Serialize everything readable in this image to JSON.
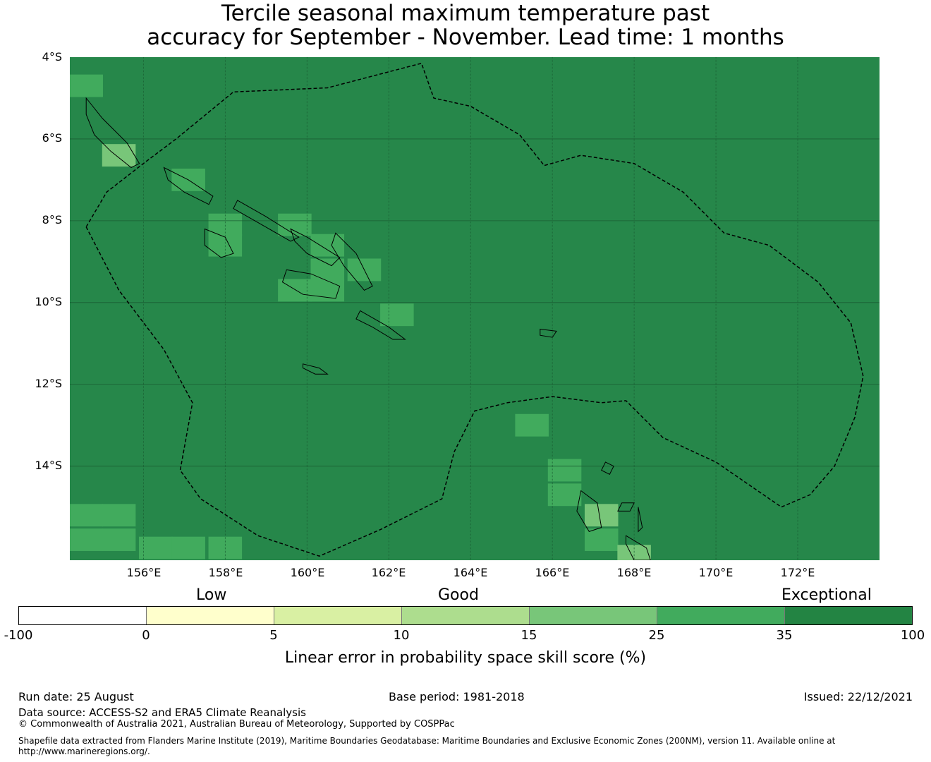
{
  "title": {
    "line1": "Tercile seasonal maximum temperature past",
    "line2": "accuracy for September - November. Lead time: 1 months"
  },
  "map": {
    "background_color": "#26874A",
    "lat_labels": [
      "4°S",
      "6°S",
      "8°S",
      "10°S",
      "12°S",
      "14°S"
    ],
    "lon_labels": [
      "156°E",
      "158°E",
      "160°E",
      "162°E",
      "164°E",
      "166°E",
      "168°E",
      "170°E",
      "172°E"
    ],
    "extent": {
      "lon_min": 154.2,
      "lon_max": 174.0,
      "lat_min": -16.3,
      "lat_max": -4.0
    },
    "cells": [
      {
        "lon": 154.6,
        "lat": -4.7,
        "level": 5
      },
      {
        "lon": 155.4,
        "lat": -6.4,
        "level": 4
      },
      {
        "lon": 157.1,
        "lat": -7.0,
        "level": 5
      },
      {
        "lon": 158.0,
        "lat": -8.1,
        "level": 5
      },
      {
        "lon": 158.0,
        "lat": -8.6,
        "level": 5
      },
      {
        "lon": 159.7,
        "lat": -8.1,
        "level": 5
      },
      {
        "lon": 160.5,
        "lat": -8.6,
        "level": 5
      },
      {
        "lon": 160.5,
        "lat": -9.2,
        "level": 5
      },
      {
        "lon": 161.4,
        "lat": -9.2,
        "level": 5
      },
      {
        "lon": 159.7,
        "lat": -9.7,
        "level": 5
      },
      {
        "lon": 160.5,
        "lat": -9.7,
        "level": 5
      },
      {
        "lon": 162.2,
        "lat": -10.3,
        "level": 5
      },
      {
        "lon": 165.5,
        "lat": -13.0,
        "level": 5
      },
      {
        "lon": 166.3,
        "lat": -14.1,
        "level": 5
      },
      {
        "lon": 166.3,
        "lat": -14.7,
        "level": 5
      },
      {
        "lon": 167.2,
        "lat": -15.2,
        "level": 4
      },
      {
        "lon": 167.2,
        "lat": -15.8,
        "level": 5
      },
      {
        "lon": 168.0,
        "lat": -16.2,
        "level": 4
      },
      {
        "lon": 154.6,
        "lat": -15.2,
        "level": 5
      },
      {
        "lon": 155.4,
        "lat": -15.2,
        "level": 5
      },
      {
        "lon": 154.6,
        "lat": -15.8,
        "level": 5
      },
      {
        "lon": 155.4,
        "lat": -15.8,
        "level": 5
      },
      {
        "lon": 156.3,
        "lat": -16.0,
        "level": 5
      },
      {
        "lon": 157.1,
        "lat": -16.0,
        "level": 5
      },
      {
        "lon": 158.0,
        "lat": -16.0,
        "level": 5
      }
    ],
    "eez_boundary": [
      [
        154.6,
        -8.15
      ],
      [
        155.1,
        -7.3
      ],
      [
        156.0,
        -6.6
      ],
      [
        156.8,
        -6.0
      ],
      [
        158.2,
        -4.85
      ],
      [
        160.5,
        -4.75
      ],
      [
        162.8,
        -4.15
      ],
      [
        163.1,
        -5.0
      ],
      [
        164.0,
        -5.2
      ],
      [
        165.2,
        -5.9
      ],
      [
        165.8,
        -6.65
      ],
      [
        166.7,
        -6.4
      ],
      [
        168.0,
        -6.6
      ],
      [
        169.2,
        -7.3
      ],
      [
        170.2,
        -8.3
      ],
      [
        171.3,
        -8.6
      ],
      [
        172.5,
        -9.5
      ],
      [
        173.3,
        -10.5
      ],
      [
        173.6,
        -11.8
      ],
      [
        173.4,
        -12.8
      ],
      [
        172.9,
        -14.0
      ],
      [
        172.3,
        -14.7
      ],
      [
        171.6,
        -15.0
      ],
      [
        170.0,
        -13.9
      ],
      [
        168.7,
        -13.3
      ],
      [
        167.8,
        -12.4
      ],
      [
        167.2,
        -12.45
      ],
      [
        166.0,
        -12.3
      ],
      [
        164.9,
        -12.45
      ],
      [
        164.1,
        -12.65
      ],
      [
        163.6,
        -13.65
      ],
      [
        163.3,
        -14.8
      ],
      [
        161.8,
        -15.55
      ],
      [
        160.3,
        -16.2
      ],
      [
        158.8,
        -15.7
      ],
      [
        157.4,
        -14.8
      ],
      [
        156.9,
        -14.1
      ],
      [
        157.2,
        -12.45
      ],
      [
        156.5,
        -11.15
      ],
      [
        155.4,
        -9.7
      ],
      [
        154.6,
        -8.15
      ]
    ],
    "islands": [
      [
        [
          154.6,
          -5.0
        ],
        [
          155.0,
          -5.5
        ],
        [
          155.6,
          -6.1
        ],
        [
          155.9,
          -6.6
        ],
        [
          155.7,
          -6.7
        ],
        [
          155.2,
          -6.3
        ],
        [
          154.8,
          -5.9
        ],
        [
          154.6,
          -5.4
        ]
      ],
      [
        [
          156.5,
          -6.7
        ],
        [
          157.1,
          -7.0
        ],
        [
          157.7,
          -7.4
        ],
        [
          157.6,
          -7.6
        ],
        [
          157.0,
          -7.3
        ],
        [
          156.6,
          -7.0
        ]
      ],
      [
        [
          158.3,
          -7.5
        ],
        [
          159.0,
          -7.9
        ],
        [
          159.8,
          -8.4
        ],
        [
          159.6,
          -8.5
        ],
        [
          158.9,
          -8.1
        ],
        [
          158.2,
          -7.7
        ]
      ],
      [
        [
          159.6,
          -8.2
        ],
        [
          160.0,
          -8.4
        ],
        [
          160.8,
          -8.9
        ],
        [
          160.6,
          -9.1
        ],
        [
          160.0,
          -8.8
        ],
        [
          159.7,
          -8.5
        ]
      ],
      [
        [
          160.7,
          -8.3
        ],
        [
          161.2,
          -8.8
        ],
        [
          161.6,
          -9.6
        ],
        [
          161.4,
          -9.7
        ],
        [
          160.9,
          -9.1
        ],
        [
          160.6,
          -8.6
        ]
      ],
      [
        [
          159.5,
          -9.2
        ],
        [
          160.1,
          -9.3
        ],
        [
          160.8,
          -9.6
        ],
        [
          160.7,
          -9.9
        ],
        [
          159.9,
          -9.8
        ],
        [
          159.4,
          -9.5
        ]
      ],
      [
        [
          157.5,
          -8.2
        ],
        [
          158.0,
          -8.4
        ],
        [
          158.2,
          -8.8
        ],
        [
          157.9,
          -8.9
        ],
        [
          157.5,
          -8.6
        ]
      ],
      [
        [
          161.3,
          -10.2
        ],
        [
          162.0,
          -10.6
        ],
        [
          162.4,
          -10.9
        ],
        [
          162.1,
          -10.9
        ],
        [
          161.6,
          -10.6
        ],
        [
          161.2,
          -10.4
        ]
      ],
      [
        [
          159.9,
          -11.5
        ],
        [
          160.3,
          -11.6
        ],
        [
          160.5,
          -11.75
        ],
        [
          160.2,
          -11.75
        ],
        [
          159.9,
          -11.6
        ]
      ],
      [
        [
          165.7,
          -10.65
        ],
        [
          166.1,
          -10.7
        ],
        [
          166.0,
          -10.85
        ],
        [
          165.7,
          -10.8
        ]
      ],
      [
        [
          166.7,
          -14.6
        ],
        [
          167.1,
          -14.9
        ],
        [
          167.2,
          -15.5
        ],
        [
          166.9,
          -15.6
        ],
        [
          166.6,
          -15.1
        ]
      ],
      [
        [
          167.7,
          -14.9
        ],
        [
          168.0,
          -14.9
        ],
        [
          167.9,
          -15.1
        ],
        [
          167.6,
          -15.1
        ]
      ],
      [
        [
          168.1,
          -15.0
        ],
        [
          168.2,
          -15.5
        ],
        [
          168.1,
          -15.6
        ]
      ],
      [
        [
          167.8,
          -15.7
        ],
        [
          168.3,
          -16.0
        ],
        [
          168.4,
          -16.3
        ],
        [
          168.0,
          -16.3
        ],
        [
          167.8,
          -15.9
        ]
      ],
      [
        [
          167.3,
          -13.9
        ],
        [
          167.5,
          -14.0
        ],
        [
          167.4,
          -14.2
        ],
        [
          167.2,
          -14.1
        ]
      ]
    ]
  },
  "colorbar": {
    "categories": [
      "Low",
      "Good",
      "Exceptional"
    ],
    "ticks": [
      "-100",
      "0",
      "5",
      "10",
      "15",
      "25",
      "35",
      "100"
    ],
    "colors": [
      "#FFFFFF",
      "#FFFFCC",
      "#D9F0A3",
      "#ADDD8E",
      "#78C679",
      "#41AB5D",
      "#238443"
    ],
    "xlabel": "Linear error in probability space skill score (%)"
  },
  "footer": {
    "run_date": "Run date: 25 August",
    "base_period": "Base period: 1981-2018",
    "issued": "Issued: 22/12/2021",
    "data_source": "Data source: ACCESS-S2 and ERA5 Climate Reanalysis",
    "copyright": "© Commonwealth of Australia 2021, Australian Bureau of Meteorology, Supported by COSPPac",
    "shapefile": "Shapefile data extracted from Flanders Marine Institute (2019), Maritime Boundaries Geodatabase: Maritime Boundaries and Exclusive Economic Zones (200NM), version 11. Available online at http://www.marineregions.org/."
  }
}
